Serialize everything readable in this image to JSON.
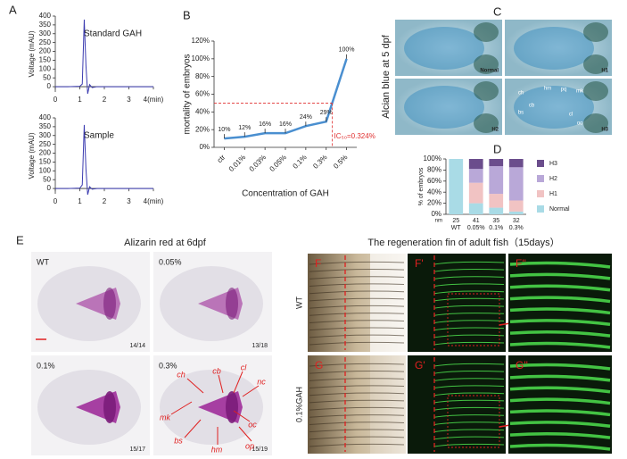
{
  "panel_labels": [
    "A",
    "B",
    "C",
    "D",
    "E"
  ],
  "chart_data": [
    {
      "type": "line",
      "ylabel": "Voltage (mAU)",
      "annotation": "Standard GAH",
      "color": "#3b3bb0",
      "x": [
        0,
        0.5,
        1,
        1.1,
        1.18,
        1.25,
        1.32,
        1.4,
        1.5,
        1.7,
        2,
        3,
        4
      ],
      "values": [
        0,
        0,
        2,
        15,
        380,
        120,
        -40,
        12,
        -5,
        0,
        0,
        0,
        0
      ],
      "xlim": [
        0,
        4
      ],
      "xticks": [
        0,
        1,
        2,
        3,
        {
          "value": 4,
          "label": "4(min)"
        }
      ],
      "ylim": [
        -30,
        400
      ],
      "yticks": [
        0,
        50,
        100,
        150,
        200,
        250,
        300,
        350,
        400
      ]
    },
    {
      "type": "line",
      "ylabel": "Voltage (mAU)",
      "annotation": "Sample",
      "color": "#3b3bb0",
      "x": [
        0,
        0.5,
        1,
        1.1,
        1.18,
        1.25,
        1.32,
        1.4,
        1.5,
        1.7,
        2,
        3,
        4
      ],
      "values": [
        0,
        0,
        2,
        20,
        360,
        110,
        -35,
        10,
        -4,
        0,
        0,
        0,
        0
      ],
      "xlim": [
        0,
        4
      ],
      "xticks": [
        0,
        1,
        2,
        3,
        {
          "value": 4,
          "label": "4(min)"
        }
      ],
      "ylim": [
        -30,
        400
      ],
      "yticks": [
        0,
        50,
        100,
        150,
        200,
        250,
        300,
        350,
        400
      ]
    },
    {
      "type": "line",
      "ylabel": "mortality of embryos",
      "xlabel": "Concentration of GAH",
      "color": "#4a8fd0",
      "categories": [
        "ctr",
        "0.01%",
        "0.03%",
        "0.05%",
        "0.1%",
        "0.3%",
        "0.5%"
      ],
      "values": [
        10,
        12,
        16,
        16,
        24,
        29,
        100
      ],
      "value_labels": [
        "10%",
        "12%",
        "16%",
        "16%",
        "24%",
        "29%",
        "100%"
      ],
      "reference_line": 50,
      "reference_color": "#e03030",
      "annotation": "IC₅₀=0.324%",
      "ylim": [
        0,
        120
      ],
      "yticks": [
        {
          "value": 0,
          "label": "0%"
        },
        {
          "value": 20,
          "label": "20%"
        },
        {
          "value": 40,
          "label": "40%"
        },
        {
          "value": 60,
          "label": "60%"
        },
        {
          "value": 80,
          "label": "80%"
        },
        {
          "value": 100,
          "label": "100%"
        },
        {
          "value": 120,
          "label": "120%"
        }
      ]
    },
    {
      "type": "stacked_bar",
      "ylabel": "% of embryos",
      "count_label": "nm",
      "categories": [
        "WT",
        "0.05%",
        "0.1%",
        "0.3%"
      ],
      "counts": [
        25,
        41,
        35,
        32
      ],
      "series": [
        {
          "name": "Normal",
          "color": "#a9dbe6",
          "values": [
            100,
            20,
            12,
            5
          ]
        },
        {
          "name": "H1",
          "color": "#f1c3c3",
          "values": [
            0,
            37,
            25,
            20
          ]
        },
        {
          "name": "H2",
          "color": "#b9a8d8",
          "values": [
            0,
            25,
            50,
            60
          ]
        },
        {
          "name": "H3",
          "color": "#6b4d8c",
          "values": [
            0,
            18,
            13,
            15
          ]
        }
      ],
      "ylim": [
        0,
        100
      ],
      "yticks": [
        {
          "value": 0,
          "label": "0%"
        },
        {
          "value": 20,
          "label": "20%"
        },
        {
          "value": 40,
          "label": "40%"
        },
        {
          "value": 60,
          "label": "60%"
        },
        {
          "value": 80,
          "label": "80%"
        },
        {
          "value": 100,
          "label": "100%"
        }
      ]
    }
  ],
  "panel_c": {
    "title": "Alcian  blue  at 5 dpf",
    "image_labels": [
      "Normal",
      "H1",
      "H2",
      "H3"
    ],
    "annotations": [
      "hm",
      "pq",
      "mk",
      "ch",
      "cb",
      "bs",
      "oc",
      "cl"
    ]
  },
  "panel_e": {
    "title": "Alizarin red at 6dpf",
    "images": [
      {
        "label": "WT",
        "ratio": "14/14"
      },
      {
        "label": "0.05%",
        "ratio": "13/18"
      },
      {
        "label": "0.1%",
        "ratio": "15/17"
      },
      {
        "label": "0.3%",
        "ratio": "15/19"
      }
    ],
    "annotations": [
      "ch",
      "cb",
      "cl",
      "nc",
      "mk",
      "oc",
      "bs",
      "hm",
      "op"
    ]
  },
  "panel_f": {
    "title": "The regeneration fin of adult fish（15days）",
    "row_labels": [
      "WT",
      "0.1%GAH"
    ],
    "image_labels": [
      "F",
      "F'",
      "F''",
      "G",
      "G'",
      "G''"
    ]
  }
}
